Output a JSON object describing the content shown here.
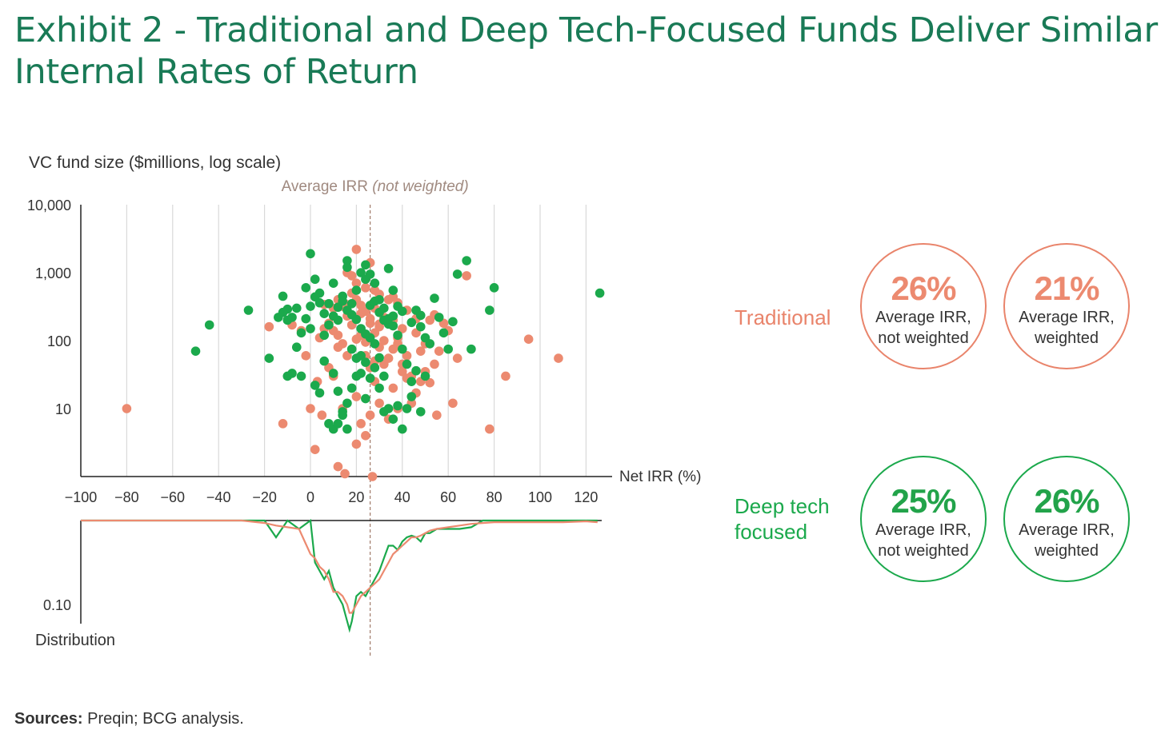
{
  "title_line1": "Exhibit 2 - Traditional and Deep Tech-Focused Funds Deliver Similar",
  "title_line2": "Internal Rates of Return",
  "sources_label": "Sources:",
  "sources_text": " Preqin; BCG analysis.",
  "colors": {
    "traditional": "#ec8a70",
    "deep_tech": "#1ba94c",
    "title": "#197a56",
    "avg_line": "#a07a6a"
  },
  "panels": [
    {
      "category": "Traditional",
      "color": "orange",
      "circles": [
        {
          "value": "26%",
          "line1": "Average IRR,",
          "line2": "not weighted"
        },
        {
          "value": "21%",
          "line1": "Average IRR,",
          "line2": "weighted"
        }
      ]
    },
    {
      "category_line1": "Deep tech",
      "category_line2": "focused",
      "color": "green",
      "circles": [
        {
          "value": "25%",
          "line1": "Average IRR,",
          "line2": "not weighted"
        },
        {
          "value": "26%",
          "line1": "Average IRR,",
          "line2": "weighted"
        }
      ]
    }
  ],
  "chart_data": {
    "type": "scatter",
    "ylabel": "VC fund size ($millions, log scale)",
    "xlabel": "Net IRR (%)",
    "x_ticks": [
      "−100",
      "−80",
      "−60",
      "−40",
      "−20",
      "0",
      "20",
      "40",
      "60",
      "80",
      "100",
      "120"
    ],
    "x_tick_values": [
      -100,
      -80,
      -60,
      -40,
      -20,
      0,
      20,
      40,
      60,
      80,
      100,
      120
    ],
    "y_ticks": [
      "10,000",
      "1,000",
      "100",
      "10"
    ],
    "y_tick_values": [
      10000,
      1000,
      100,
      10
    ],
    "xlim": [
      -100,
      125
    ],
    "ylim_log": [
      1,
      10000
    ],
    "y_scale": "log",
    "grid": "vertical",
    "avg_line": {
      "x": 26,
      "label": "Average IRR",
      "label_note": "(not weighted)"
    },
    "series": [
      {
        "name": "Traditional",
        "color": "#ec8a70",
        "points": [
          [
            -80,
            10
          ],
          [
            20,
            2200
          ],
          [
            26,
            1400
          ],
          [
            68,
            900
          ],
          [
            95,
            105
          ],
          [
            108,
            55
          ],
          [
            85,
            30
          ],
          [
            78,
            5
          ],
          [
            62,
            12
          ],
          [
            55,
            8
          ],
          [
            -18,
            160
          ],
          [
            -12,
            6
          ],
          [
            -2,
            60
          ],
          [
            3,
            25
          ],
          [
            8,
            40
          ],
          [
            12,
            120
          ],
          [
            15,
            350
          ],
          [
            18,
            500
          ],
          [
            20,
            700
          ],
          [
            22,
            250
          ],
          [
            24,
            600
          ],
          [
            26,
            180
          ],
          [
            28,
            300
          ],
          [
            30,
            80
          ],
          [
            32,
            45
          ],
          [
            34,
            400
          ],
          [
            36,
            200
          ],
          [
            38,
            90
          ],
          [
            40,
            150
          ],
          [
            42,
            60
          ],
          [
            44,
            30
          ],
          [
            46,
            130
          ],
          [
            48,
            25
          ],
          [
            50,
            35
          ],
          [
            52,
            200
          ],
          [
            54,
            240
          ],
          [
            56,
            70
          ],
          [
            58,
            180
          ],
          [
            60,
            140
          ],
          [
            64,
            55
          ],
          [
            14,
            10
          ],
          [
            16,
            60
          ],
          [
            18,
            20
          ],
          [
            20,
            15
          ],
          [
            22,
            6
          ],
          [
            24,
            4
          ],
          [
            26,
            8
          ],
          [
            28,
            50
          ],
          [
            30,
            12
          ],
          [
            32,
            100
          ],
          [
            34,
            7
          ],
          [
            36,
            20
          ],
          [
            38,
            10
          ],
          [
            40,
            35
          ],
          [
            0,
            10
          ],
          [
            5,
            8
          ],
          [
            10,
            30
          ],
          [
            12,
            80
          ],
          [
            14,
            90
          ],
          [
            16,
            1000
          ],
          [
            18,
            900
          ],
          [
            20,
            400
          ],
          [
            22,
            120
          ],
          [
            24,
            60
          ],
          [
            26,
            40
          ],
          [
            28,
            25
          ],
          [
            30,
            160
          ],
          [
            32,
            220
          ],
          [
            34,
            55
          ],
          [
            36,
            75
          ],
          [
            38,
            110
          ],
          [
            40,
            45
          ],
          [
            42,
            28
          ],
          [
            44,
            12
          ],
          [
            46,
            17
          ],
          [
            48,
            70
          ],
          [
            50,
            90
          ],
          [
            52,
            24
          ],
          [
            54,
            45
          ],
          [
            2,
            2.5
          ],
          [
            12,
            1.4
          ],
          [
            15,
            1.1
          ],
          [
            20,
            3
          ],
          [
            27,
            1
          ],
          [
            18,
            170
          ],
          [
            20,
            105
          ],
          [
            24,
            95
          ],
          [
            26,
            210
          ],
          [
            28,
            130
          ],
          [
            30,
            175
          ],
          [
            10,
            300
          ],
          [
            12,
            400
          ],
          [
            14,
            320
          ],
          [
            16,
            230
          ],
          [
            8,
            180
          ],
          [
            6,
            150
          ],
          [
            4,
            110
          ],
          [
            -4,
            140
          ],
          [
            -8,
            170
          ],
          [
            36,
            440
          ],
          [
            38,
            360
          ],
          [
            42,
            280
          ],
          [
            46,
            210
          ],
          [
            28,
            550
          ],
          [
            30,
            480
          ],
          [
            22,
            330
          ],
          [
            24,
            270
          ],
          [
            10,
            140
          ],
          [
            6,
            340
          ]
        ]
      },
      {
        "name": "Deep tech focused",
        "color": "#1ba94c",
        "points": [
          [
            -50,
            70
          ],
          [
            -44,
            170
          ],
          [
            -27,
            280
          ],
          [
            -18,
            55
          ],
          [
            -12,
            450
          ],
          [
            -10,
            200
          ],
          [
            -8,
            220
          ],
          [
            -6,
            300
          ],
          [
            -4,
            130
          ],
          [
            -2,
            600
          ],
          [
            0,
            1900
          ],
          [
            0,
            150
          ],
          [
            2,
            800
          ],
          [
            4,
            500
          ],
          [
            6,
            120
          ],
          [
            8,
            350
          ],
          [
            10,
            700
          ],
          [
            12,
            200
          ],
          [
            14,
            450
          ],
          [
            16,
            1500
          ],
          [
            16,
            1200
          ],
          [
            18,
            350
          ],
          [
            20,
            550
          ],
          [
            22,
            1000
          ],
          [
            24,
            800
          ],
          [
            24,
            1300
          ],
          [
            26,
            950
          ],
          [
            28,
            700
          ],
          [
            30,
            400
          ],
          [
            32,
            300
          ],
          [
            34,
            1150
          ],
          [
            36,
            550
          ],
          [
            38,
            120
          ],
          [
            40,
            75
          ],
          [
            42,
            45
          ],
          [
            44,
            25
          ],
          [
            46,
            280
          ],
          [
            48,
            160
          ],
          [
            50,
            110
          ],
          [
            52,
            90
          ],
          [
            54,
            420
          ],
          [
            56,
            220
          ],
          [
            58,
            130
          ],
          [
            60,
            75
          ],
          [
            62,
            190
          ],
          [
            64,
            950
          ],
          [
            68,
            1500
          ],
          [
            70,
            75
          ],
          [
            78,
            280
          ],
          [
            80,
            600
          ],
          [
            126,
            500
          ],
          [
            2,
            22
          ],
          [
            4,
            17
          ],
          [
            6,
            50
          ],
          [
            10,
            33
          ],
          [
            12,
            18
          ],
          [
            14,
            8
          ],
          [
            16,
            12
          ],
          [
            18,
            75
          ],
          [
            20,
            55
          ],
          [
            22,
            33
          ],
          [
            24,
            14
          ],
          [
            26,
            28
          ],
          [
            28,
            40
          ],
          [
            30,
            20
          ],
          [
            32,
            9
          ],
          [
            34,
            10
          ],
          [
            36,
            7
          ],
          [
            38,
            11
          ],
          [
            40,
            5
          ],
          [
            42,
            10
          ],
          [
            44,
            15
          ],
          [
            46,
            36
          ],
          [
            48,
            9
          ],
          [
            50,
            30
          ],
          [
            -4,
            30
          ],
          [
            -8,
            33
          ],
          [
            -10,
            30
          ],
          [
            -6,
            80
          ],
          [
            8,
            6
          ],
          [
            10,
            5
          ],
          [
            12,
            6
          ],
          [
            14,
            9
          ],
          [
            16,
            5
          ],
          [
            18,
            20
          ],
          [
            20,
            30
          ],
          [
            22,
            60
          ],
          [
            24,
            48
          ],
          [
            26,
            110
          ],
          [
            28,
            90
          ],
          [
            30,
            56
          ],
          [
            32,
            30
          ],
          [
            34,
            175
          ],
          [
            36,
            230
          ],
          [
            -14,
            220
          ],
          [
            -12,
            260
          ],
          [
            -10,
            290
          ],
          [
            -2,
            210
          ],
          [
            0,
            320
          ],
          [
            2,
            440
          ],
          [
            4,
            360
          ],
          [
            6,
            250
          ],
          [
            8,
            170
          ],
          [
            10,
            230
          ],
          [
            12,
            310
          ],
          [
            14,
            380
          ],
          [
            16,
            280
          ],
          [
            18,
            240
          ],
          [
            20,
            205
          ],
          [
            22,
            150
          ],
          [
            24,
            125
          ],
          [
            26,
            330
          ],
          [
            28,
            380
          ],
          [
            30,
            260
          ],
          [
            32,
            200
          ],
          [
            34,
            210
          ],
          [
            36,
            165
          ],
          [
            38,
            320
          ],
          [
            40,
            270
          ],
          [
            44,
            185
          ],
          [
            48,
            235
          ]
        ]
      }
    ],
    "distribution": {
      "ylabel": "Distribution",
      "y_tick": "0.10",
      "y_tick_value": 0.1,
      "x": [
        -100,
        -90,
        -80,
        -70,
        -60,
        -50,
        -40,
        -30,
        -20,
        -15,
        -10,
        -5,
        0,
        2,
        4,
        6,
        8,
        10,
        12,
        14,
        16,
        17,
        18,
        20,
        22,
        24,
        26,
        28,
        30,
        32,
        34,
        36,
        38,
        40,
        42,
        44,
        46,
        48,
        50,
        52,
        55,
        60,
        65,
        70,
        75,
        80,
        90,
        100,
        110,
        120,
        125
      ],
      "traditional": [
        0.0,
        0.0,
        0.0,
        0.0,
        0.0,
        0.0,
        0.0,
        0.0,
        0.003,
        0.006,
        0.008,
        0.01,
        0.04,
        0.045,
        0.055,
        0.06,
        0.07,
        0.085,
        0.085,
        0.09,
        0.1,
        0.11,
        0.11,
        0.1,
        0.09,
        0.085,
        0.08,
        0.075,
        0.07,
        0.06,
        0.05,
        0.04,
        0.035,
        0.03,
        0.025,
        0.02,
        0.02,
        0.018,
        0.015,
        0.012,
        0.01,
        0.008,
        0.006,
        0.004,
        0.003,
        0.002,
        0.002,
        0.002,
        0.002,
        0.001,
        0.002
      ],
      "deep_tech": [
        0.0,
        0.0,
        0.0,
        0.0,
        0.0,
        0.0,
        0.0,
        0.0,
        0.0,
        0.02,
        0.0,
        0.01,
        0.0,
        0.05,
        0.06,
        0.07,
        0.06,
        0.08,
        0.09,
        0.1,
        0.12,
        0.13,
        0.12,
        0.09,
        0.085,
        0.09,
        0.08,
        0.07,
        0.06,
        0.045,
        0.03,
        0.03,
        0.035,
        0.025,
        0.02,
        0.018,
        0.02,
        0.025,
        0.015,
        0.015,
        0.01,
        0.01,
        0.01,
        0.008,
        0.0,
        0.0,
        0.0,
        0.0,
        0.0,
        0.0,
        0.0
      ]
    }
  }
}
